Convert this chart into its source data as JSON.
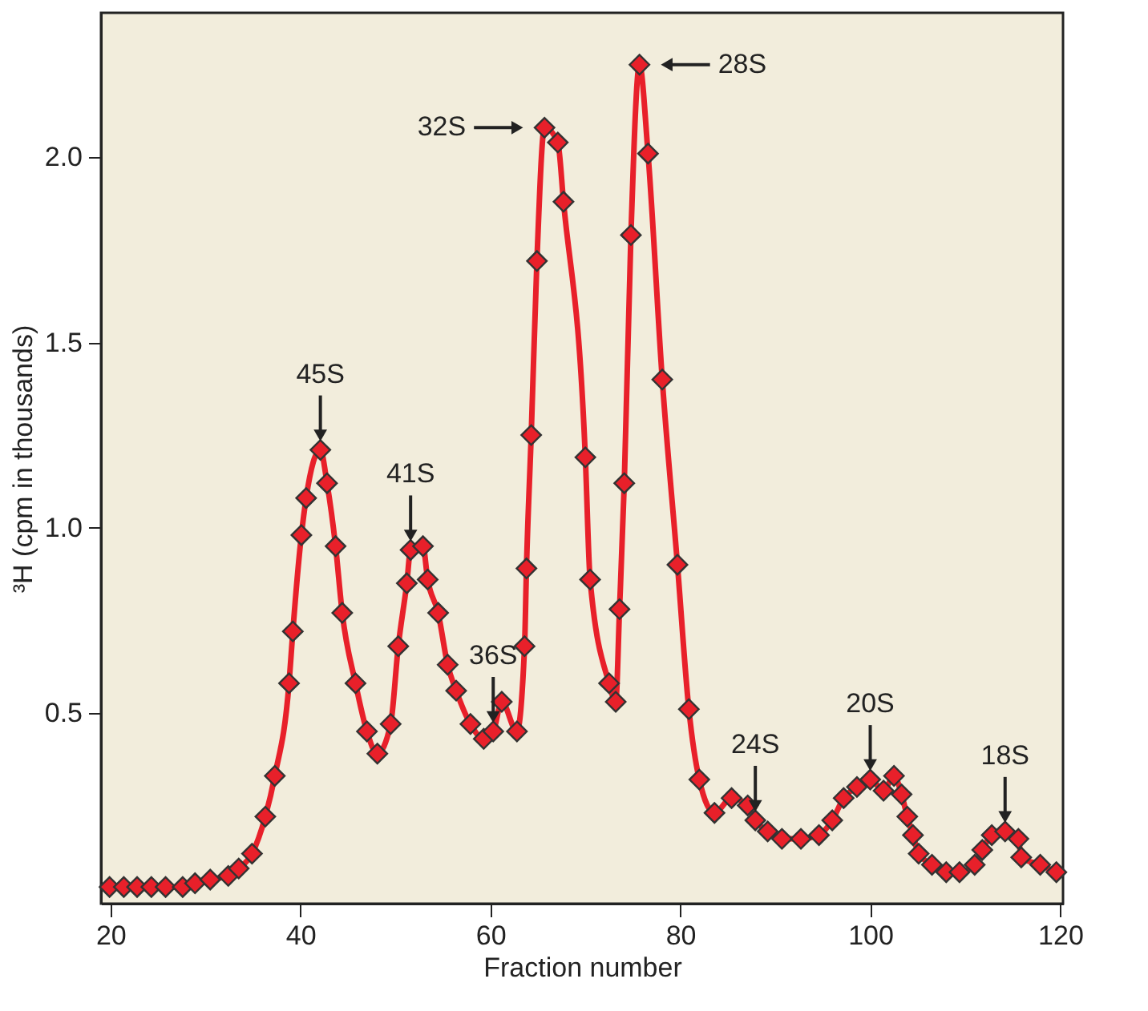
{
  "chart_data": {
    "type": "line",
    "xlabel": "Fraction number",
    "ylabel": "³H (cpm in thousands)",
    "x": [
      19.9,
      21.4,
      22.8,
      24.3,
      25.8,
      27.6,
      28.9,
      30.5,
      32.4,
      33.5,
      34.9,
      36.3,
      37.3,
      38.8,
      39.2,
      40.1,
      40.6,
      42.1,
      42.8,
      43.7,
      44.4,
      45.8,
      47.0,
      48.1,
      49.5,
      50.3,
      51.2,
      51.6,
      52.9,
      53.4,
      54.5,
      55.5,
      56.4,
      57.9,
      59.3,
      60.3,
      61.2,
      62.8,
      63.6,
      63.8,
      64.3,
      64.9,
      65.7,
      67.1,
      67.7,
      70.0,
      70.5,
      72.5,
      73.2,
      73.6,
      74.1,
      74.8,
      75.7,
      76.6,
      78.1,
      79.7,
      80.9,
      82.0,
      83.6,
      85.4,
      87.1,
      87.9,
      89.2,
      90.7,
      92.7,
      94.6,
      96.0,
      97.2,
      98.6,
      100.0,
      101.4,
      102.5,
      103.3,
      103.9,
      104.5,
      105.1,
      106.5,
      108.0,
      109.4,
      111.0,
      111.8,
      112.8,
      114.2,
      115.6,
      115.9,
      117.9,
      119.6
    ],
    "series": [
      {
        "color": "#e8202a",
        "values": [
          0.03,
          0.03,
          0.03,
          0.03,
          0.03,
          0.03,
          0.04,
          0.05,
          0.06,
          0.08,
          0.12,
          0.22,
          0.33,
          0.58,
          0.72,
          0.98,
          1.08,
          1.21,
          1.12,
          0.95,
          0.77,
          0.58,
          0.45,
          0.39,
          0.47,
          0.68,
          0.85,
          0.94,
          0.95,
          0.86,
          0.77,
          0.63,
          0.56,
          0.47,
          0.43,
          0.45,
          0.53,
          0.45,
          0.68,
          0.89,
          1.25,
          1.72,
          2.08,
          2.04,
          1.88,
          1.19,
          0.86,
          0.58,
          0.53,
          0.78,
          1.12,
          1.79,
          2.25,
          2.01,
          1.4,
          0.9,
          0.51,
          0.32,
          0.23,
          0.27,
          0.25,
          0.21,
          0.18,
          0.16,
          0.16,
          0.17,
          0.21,
          0.27,
          0.3,
          0.32,
          0.29,
          0.33,
          0.28,
          0.22,
          0.17,
          0.12,
          0.09,
          0.07,
          0.07,
          0.09,
          0.13,
          0.17,
          0.18,
          0.16,
          0.11,
          0.09,
          0.07
        ]
      }
    ],
    "marker": "diamond",
    "line_style": "solid",
    "grid": false,
    "xlim": [
      19,
      120.3
    ],
    "xticks": [
      20,
      40,
      60,
      80,
      100,
      120
    ],
    "ylim": [
      -0.015,
      2.39
    ],
    "yticks": [
      {
        "value": 0.5,
        "label": "0.5"
      },
      {
        "value": 1,
        "label": "1.0"
      },
      {
        "value": 1.5,
        "label": "1.5"
      },
      {
        "value": 2,
        "label": "2.0"
      }
    ],
    "annotations": [
      {
        "text": "45S",
        "x": 42.1,
        "y": 1.21
      },
      {
        "text": "41S",
        "x": 51.6,
        "y": 0.94
      },
      {
        "text": "36S",
        "x": 60.3,
        "y": 0.45
      },
      {
        "text": "32S",
        "x": 65.7,
        "y": 2.08
      },
      {
        "text": "28S",
        "x": 75.7,
        "y": 2.25
      },
      {
        "text": "24S",
        "x": 87.9,
        "y": 0.21
      },
      {
        "text": "20S",
        "x": 100.0,
        "y": 0.32
      },
      {
        "text": "18S",
        "x": 114.2,
        "y": 0.18
      }
    ]
  }
}
